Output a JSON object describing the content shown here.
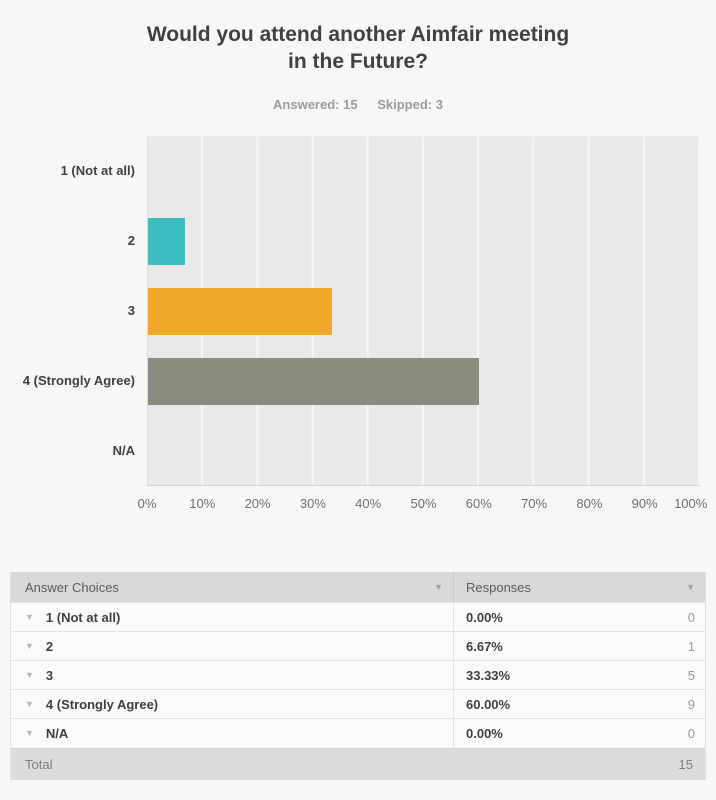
{
  "page": {
    "background": "#f7f7f7"
  },
  "header": {
    "title_line1": "Would you attend another Aimfair meeting",
    "title_line2": "in the Future?",
    "answered": "Answered: 15",
    "skipped": "Skipped: 3"
  },
  "chart_data": {
    "type": "bar",
    "orientation": "horizontal",
    "title": "Would you attend another Aimfair meeting in the Future?",
    "categories": [
      "1 (Not at all)",
      "2",
      "3",
      "4 (Strongly Agree)",
      "N/A"
    ],
    "values": [
      0,
      6.67,
      33.33,
      60,
      0
    ],
    "bar_colors": [
      "",
      "#3fbcbf",
      "#f0a92b",
      "#8c8b7f",
      ""
    ],
    "counts": [
      0,
      1,
      5,
      9,
      0
    ],
    "xlim": [
      0,
      100
    ],
    "xticks": [
      "0%",
      "10%",
      "20%",
      "30%",
      "40%",
      "50%",
      "60%",
      "70%",
      "80%",
      "90%",
      "100%"
    ],
    "grid": "vertical-gridlines-on",
    "legend": "none",
    "plot_background": "#e9e9e9"
  },
  "table": {
    "headers": {
      "choices": "Answer Choices",
      "responses": "Responses"
    },
    "rows": [
      {
        "choice": "1 (Not at all)",
        "percent": "0.00%",
        "count": "0"
      },
      {
        "choice": "2",
        "percent": "6.67%",
        "count": "1"
      },
      {
        "choice": "3",
        "percent": "33.33%",
        "count": "5"
      },
      {
        "choice": "4 (Strongly Agree)",
        "percent": "60.00%",
        "count": "9"
      },
      {
        "choice": "N/A",
        "percent": "0.00%",
        "count": "0"
      }
    ],
    "total_label": "Total",
    "total_value": "15"
  },
  "icons": {
    "sort_chevron": "▼",
    "row_chevron": "▼"
  }
}
